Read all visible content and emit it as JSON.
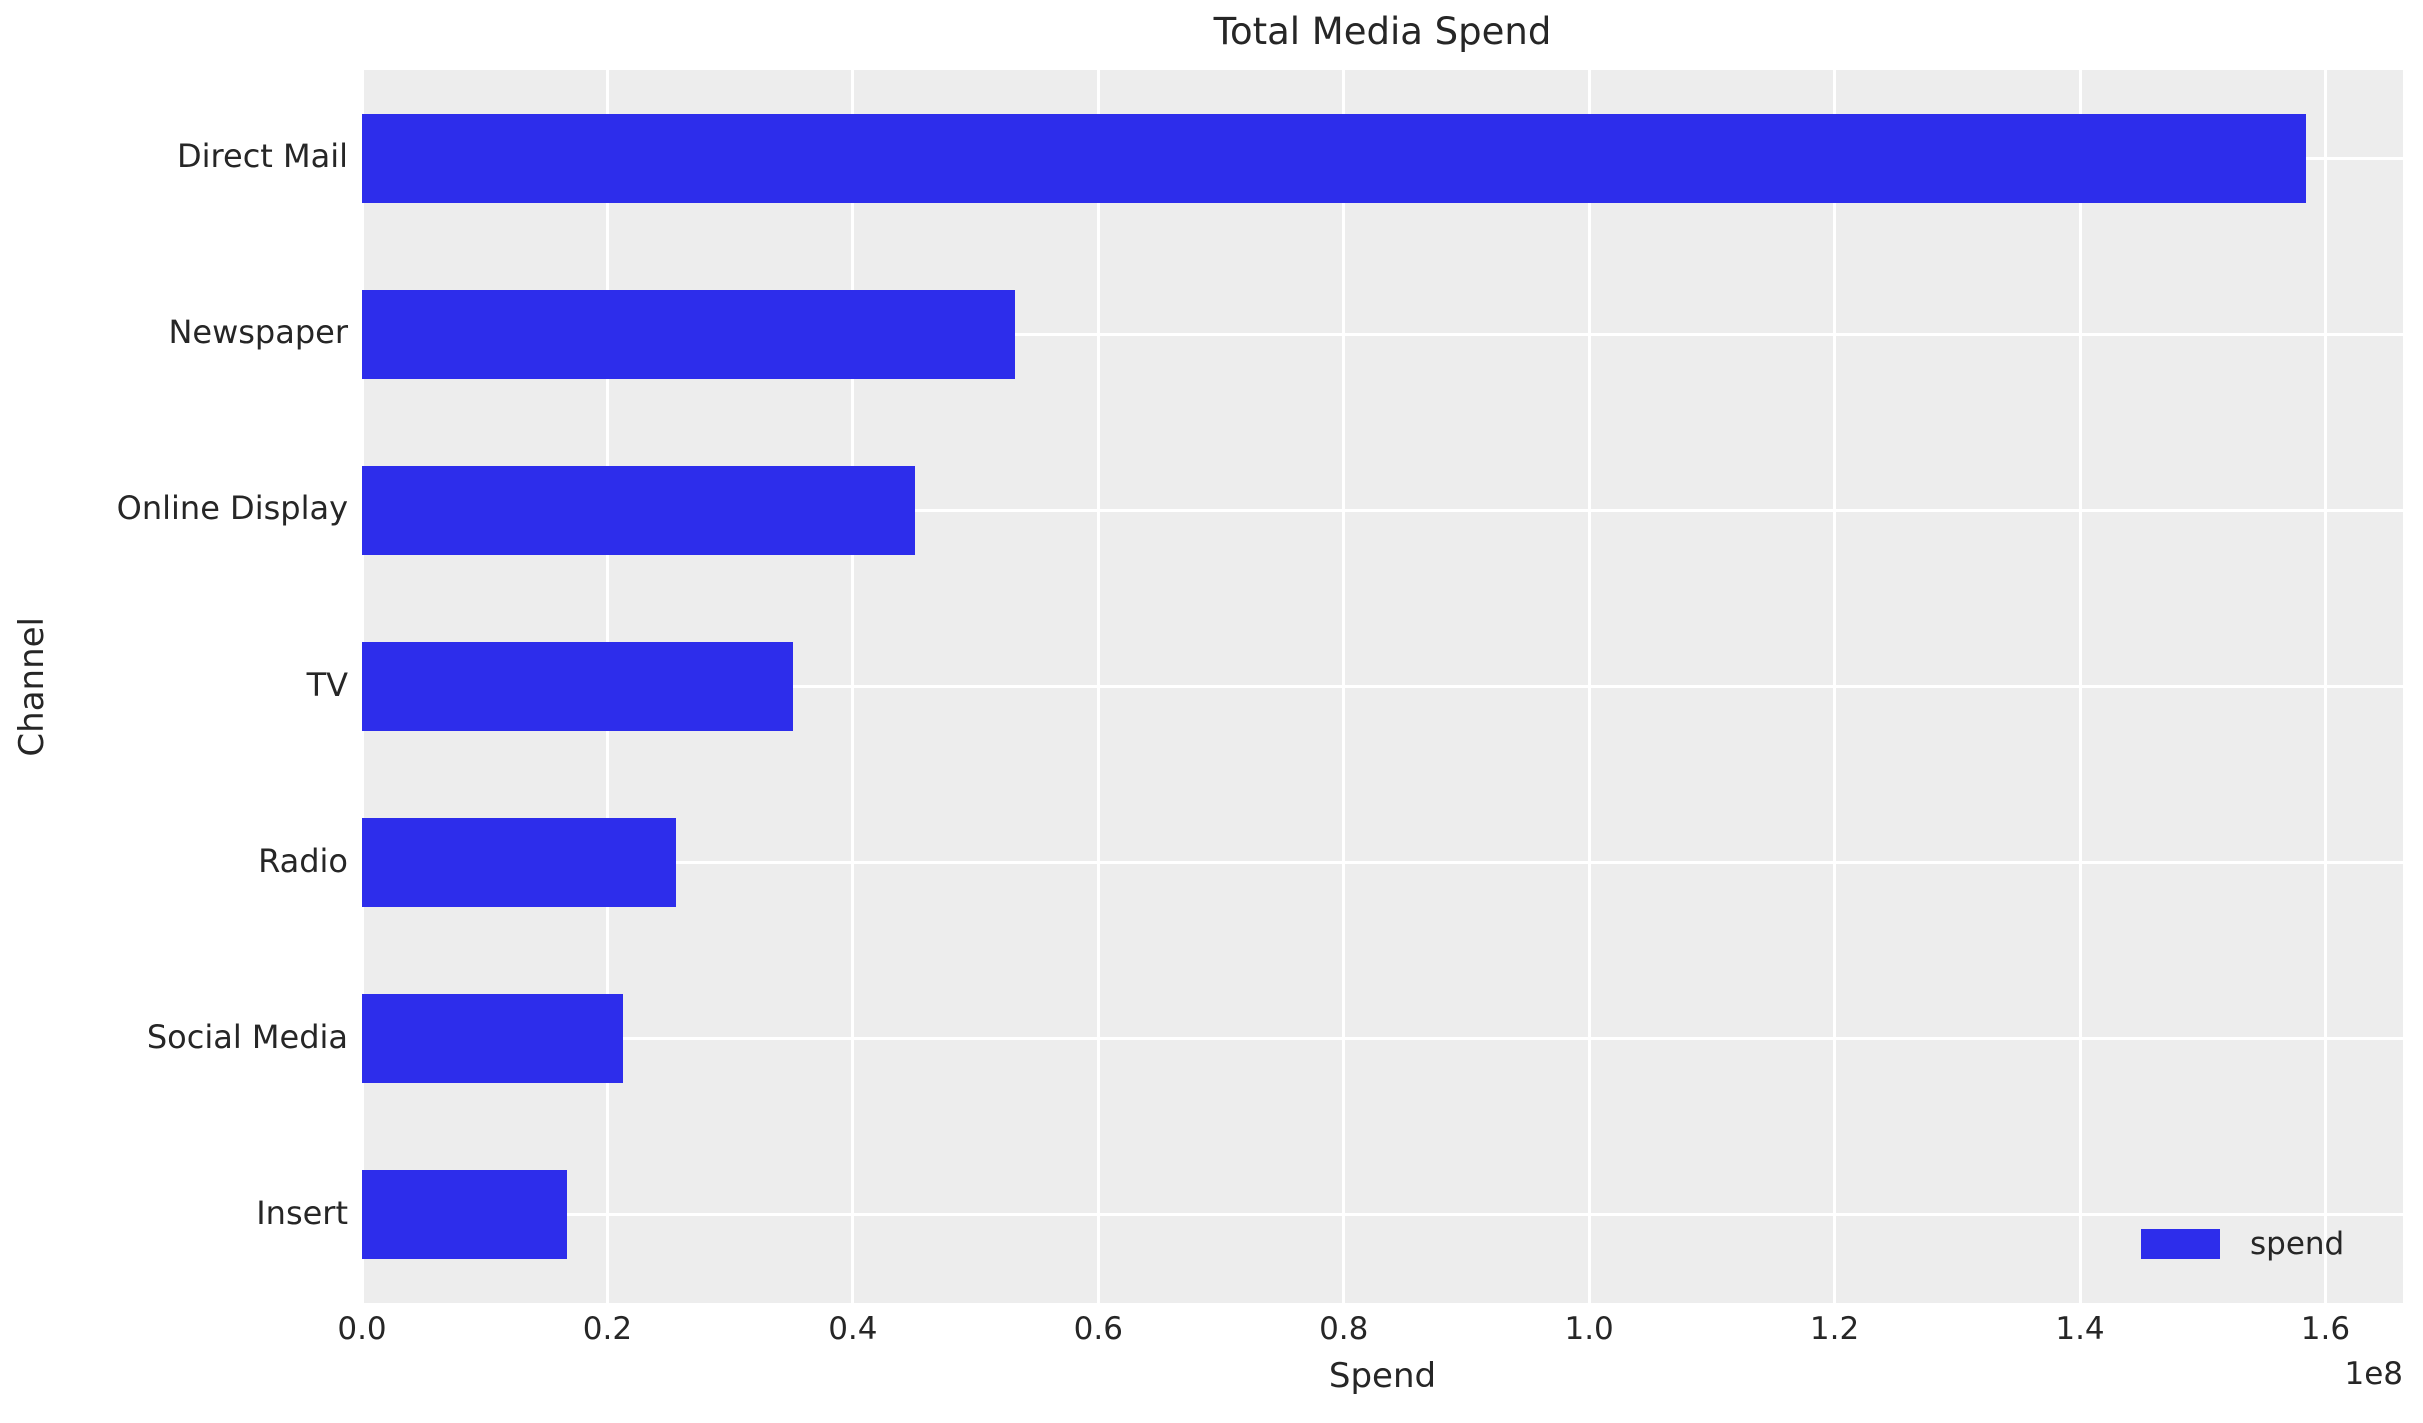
{
  "colors": {
    "bar": "#2d2deb",
    "plot_background": "#ededed",
    "grid": "#ffffff",
    "figure_background": "#ffffff",
    "text": "#262626"
  },
  "chart_data": {
    "type": "bar",
    "orientation": "horizontal",
    "title": "Total Media Spend",
    "xlabel": "Spend",
    "ylabel": "Channel",
    "offset_text": "1e8",
    "categories": [
      "Direct Mail",
      "Newspaper",
      "Online Display",
      "TV",
      "Radio",
      "Social Media",
      "Insert"
    ],
    "series": [
      {
        "name": "spend",
        "values": [
          158400000,
          53200000,
          45100000,
          35100000,
          25600000,
          21300000,
          16700000
        ]
      }
    ],
    "xlim": [
      0,
      166320000
    ],
    "xticks": [
      0,
      20000000,
      40000000,
      60000000,
      80000000,
      100000000,
      120000000,
      140000000,
      160000000
    ],
    "xtick_labels": [
      "0.0",
      "0.2",
      "0.4",
      "0.6",
      "0.8",
      "1.0",
      "1.2",
      "1.4",
      "1.6"
    ],
    "grid": true,
    "legend": {
      "label": "spend",
      "position": "lower right"
    }
  }
}
